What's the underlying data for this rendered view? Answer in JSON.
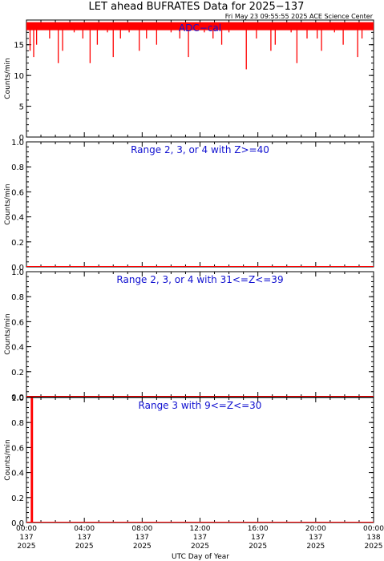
{
  "header": {
    "title": "LET ahead BUFRATES Data for 2025−137",
    "timestamp": "Fri May 23 09:55:55 2025 ACE Science Center"
  },
  "colors": {
    "data": "#ff0000",
    "panel_title": "#1010d0",
    "axis": "#000000"
  },
  "chart_data": [
    {
      "type": "line",
      "title": "ADC−cal",
      "ylabel": "Counts/min",
      "ylim": [
        0,
        19
      ],
      "yticks": [
        "0",
        "5",
        "10",
        "15"
      ],
      "baseline": 18,
      "series": [
        {
          "values": [
            [
              0.2,
              18
            ],
            [
              0.25,
              14
            ],
            [
              0.3,
              18
            ],
            [
              0.5,
              13
            ],
            [
              0.55,
              18
            ],
            [
              0.7,
              15
            ],
            [
              0.75,
              18
            ],
            [
              1.6,
              16
            ],
            [
              1.7,
              18
            ],
            [
              2.2,
              12
            ],
            [
              2.25,
              18
            ],
            [
              2.5,
              14
            ],
            [
              2.55,
              18
            ],
            [
              3.3,
              17
            ],
            [
              3.35,
              18
            ],
            [
              3.9,
              16
            ],
            [
              3.95,
              18
            ],
            [
              4.4,
              12
            ],
            [
              4.45,
              18
            ],
            [
              4.9,
              15
            ],
            [
              4.95,
              18
            ],
            [
              5.6,
              17
            ],
            [
              5.65,
              18
            ],
            [
              6.0,
              13
            ],
            [
              6.05,
              18
            ],
            [
              6.5,
              16
            ],
            [
              6.55,
              18
            ],
            [
              7.1,
              17
            ],
            [
              7.15,
              18
            ],
            [
              7.8,
              14
            ],
            [
              7.85,
              18
            ],
            [
              8.3,
              16
            ],
            [
              8.35,
              18
            ],
            [
              9.0,
              15
            ],
            [
              9.05,
              18
            ],
            [
              10.0,
              17
            ],
            [
              10.05,
              18
            ],
            [
              10.6,
              16
            ],
            [
              10.65,
              18
            ],
            [
              11.2,
              13
            ],
            [
              11.25,
              18
            ],
            [
              12.3,
              17
            ],
            [
              12.35,
              18
            ],
            [
              12.9,
              16
            ],
            [
              12.95,
              18
            ],
            [
              13.5,
              15
            ],
            [
              13.55,
              18
            ],
            [
              14.0,
              17
            ],
            [
              14.05,
              18
            ],
            [
              15.2,
              11
            ],
            [
              15.25,
              18
            ],
            [
              15.9,
              16
            ],
            [
              15.95,
              18
            ],
            [
              16.9,
              14
            ],
            [
              16.95,
              18
            ],
            [
              17.2,
              15
            ],
            [
              17.25,
              18
            ],
            [
              18.3,
              17
            ],
            [
              18.35,
              18
            ],
            [
              18.7,
              12
            ],
            [
              18.75,
              18
            ],
            [
              19.4,
              16
            ],
            [
              19.45,
              18
            ],
            [
              20.1,
              16
            ],
            [
              20.15,
              18
            ],
            [
              20.4,
              14
            ],
            [
              20.45,
              18
            ],
            [
              21.3,
              17
            ],
            [
              21.35,
              18
            ],
            [
              21.9,
              15
            ],
            [
              21.95,
              18
            ],
            [
              22.9,
              13
            ],
            [
              22.95,
              18
            ],
            [
              23.2,
              16
            ],
            [
              23.25,
              18
            ]
          ]
        }
      ]
    },
    {
      "type": "line",
      "title": "Range 2, 3, or 4 with Z>=40",
      "ylabel": "Counts/min",
      "ylim": [
        0,
        1
      ],
      "yticks": [
        "0.0",
        "0.2",
        "0.4",
        "0.6",
        "0.8",
        "1.0"
      ],
      "series": [
        {
          "values": [
            [
              0,
              0
            ],
            [
              24,
              0
            ]
          ]
        }
      ]
    },
    {
      "type": "line",
      "title": "Range 2, 3, or 4 with 31<=Z<=39",
      "ylabel": "Counts/min",
      "ylim": [
        0,
        1
      ],
      "yticks": [
        "0.0",
        "0.2",
        "0.4",
        "0.6",
        "0.8",
        "1.0"
      ],
      "series": [
        {
          "values": [
            [
              0,
              0
            ],
            [
              24,
              0
            ]
          ]
        }
      ]
    },
    {
      "type": "line",
      "title": "Range 3 with 9<=Z<=30",
      "ylabel": "Counts/min",
      "ylim": [
        0,
        1
      ],
      "yticks": [
        "0.0",
        "0.2",
        "0.4",
        "0.6",
        "0.8",
        "1.0"
      ],
      "series": [
        {
          "values": [
            [
              0,
              0
            ],
            [
              0.35,
              0
            ],
            [
              0.35,
              1
            ],
            [
              0.4,
              1
            ],
            [
              0.4,
              0
            ],
            [
              24,
              0
            ]
          ]
        }
      ]
    }
  ],
  "x_axis": {
    "xlabel": "UTC Day of Year",
    "xlim": [
      0,
      24
    ],
    "ticks": [
      {
        "hour": 0,
        "time": "00:00",
        "doy": "137",
        "year": "2025"
      },
      {
        "hour": 4,
        "time": "04:00",
        "doy": "137",
        "year": "2025"
      },
      {
        "hour": 8,
        "time": "08:00",
        "doy": "137",
        "year": "2025"
      },
      {
        "hour": 12,
        "time": "12:00",
        "doy": "137",
        "year": "2025"
      },
      {
        "hour": 16,
        "time": "16:00",
        "doy": "137",
        "year": "2025"
      },
      {
        "hour": 20,
        "time": "20:00",
        "doy": "137",
        "year": "2025"
      },
      {
        "hour": 24,
        "time": "00:00",
        "doy": "138",
        "year": "2025"
      }
    ]
  }
}
